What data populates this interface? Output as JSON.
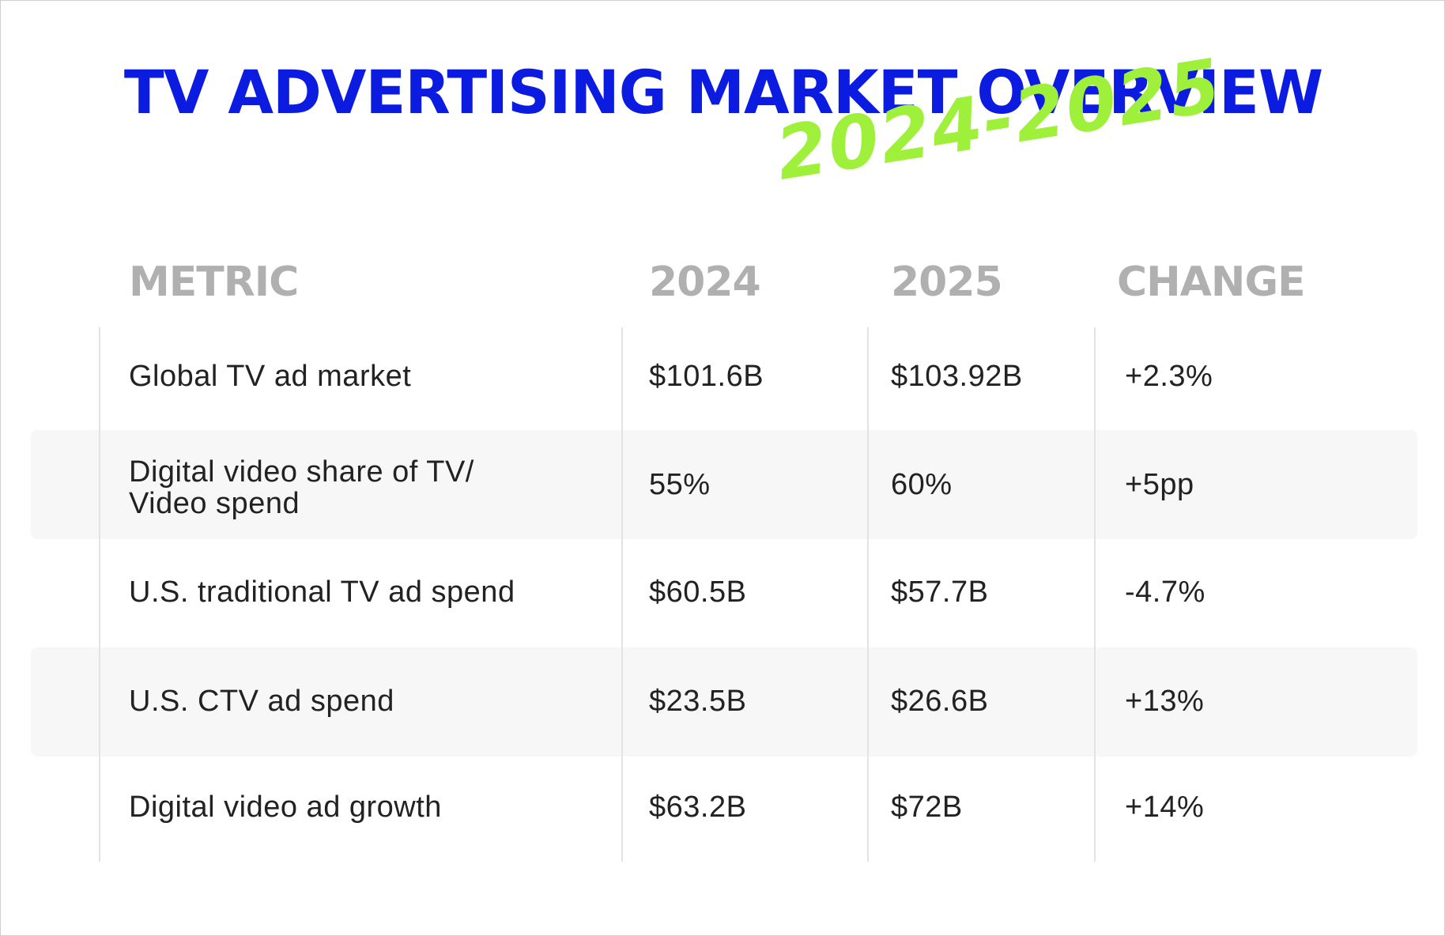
{
  "title": "TV ADVERTISING MARKET OVERVIEW",
  "subtitle": "2024-2025",
  "colors": {
    "title": "#0b1be0",
    "subtitle": "#9ff03a",
    "header": "#b0b0b0",
    "text": "#222222",
    "stripe": "#f7f7f7",
    "divider": "#e3e3e3"
  },
  "chart_data": {
    "type": "table",
    "title": "TV ADVERTISING MARKET OVERVIEW",
    "subtitle": "2024-2025",
    "columns": [
      "METRIC",
      "2024",
      "2025",
      "CHANGE"
    ],
    "rows": [
      [
        "Global TV ad market",
        "$101.6B",
        "$103.92B",
        "+2.3%"
      ],
      [
        "Digital video share of TV/ Video spend",
        "55%",
        "60%",
        "+5pp"
      ],
      [
        "U.S. traditional TV ad spend",
        "$60.5B",
        "$57.7B",
        "-4.7%"
      ],
      [
        "U.S. CTV ad spend",
        "$23.5B",
        "$26.6B",
        "+13%"
      ],
      [
        "Digital video ad growth",
        "$63.2B",
        "$72B",
        "+14%"
      ]
    ]
  }
}
